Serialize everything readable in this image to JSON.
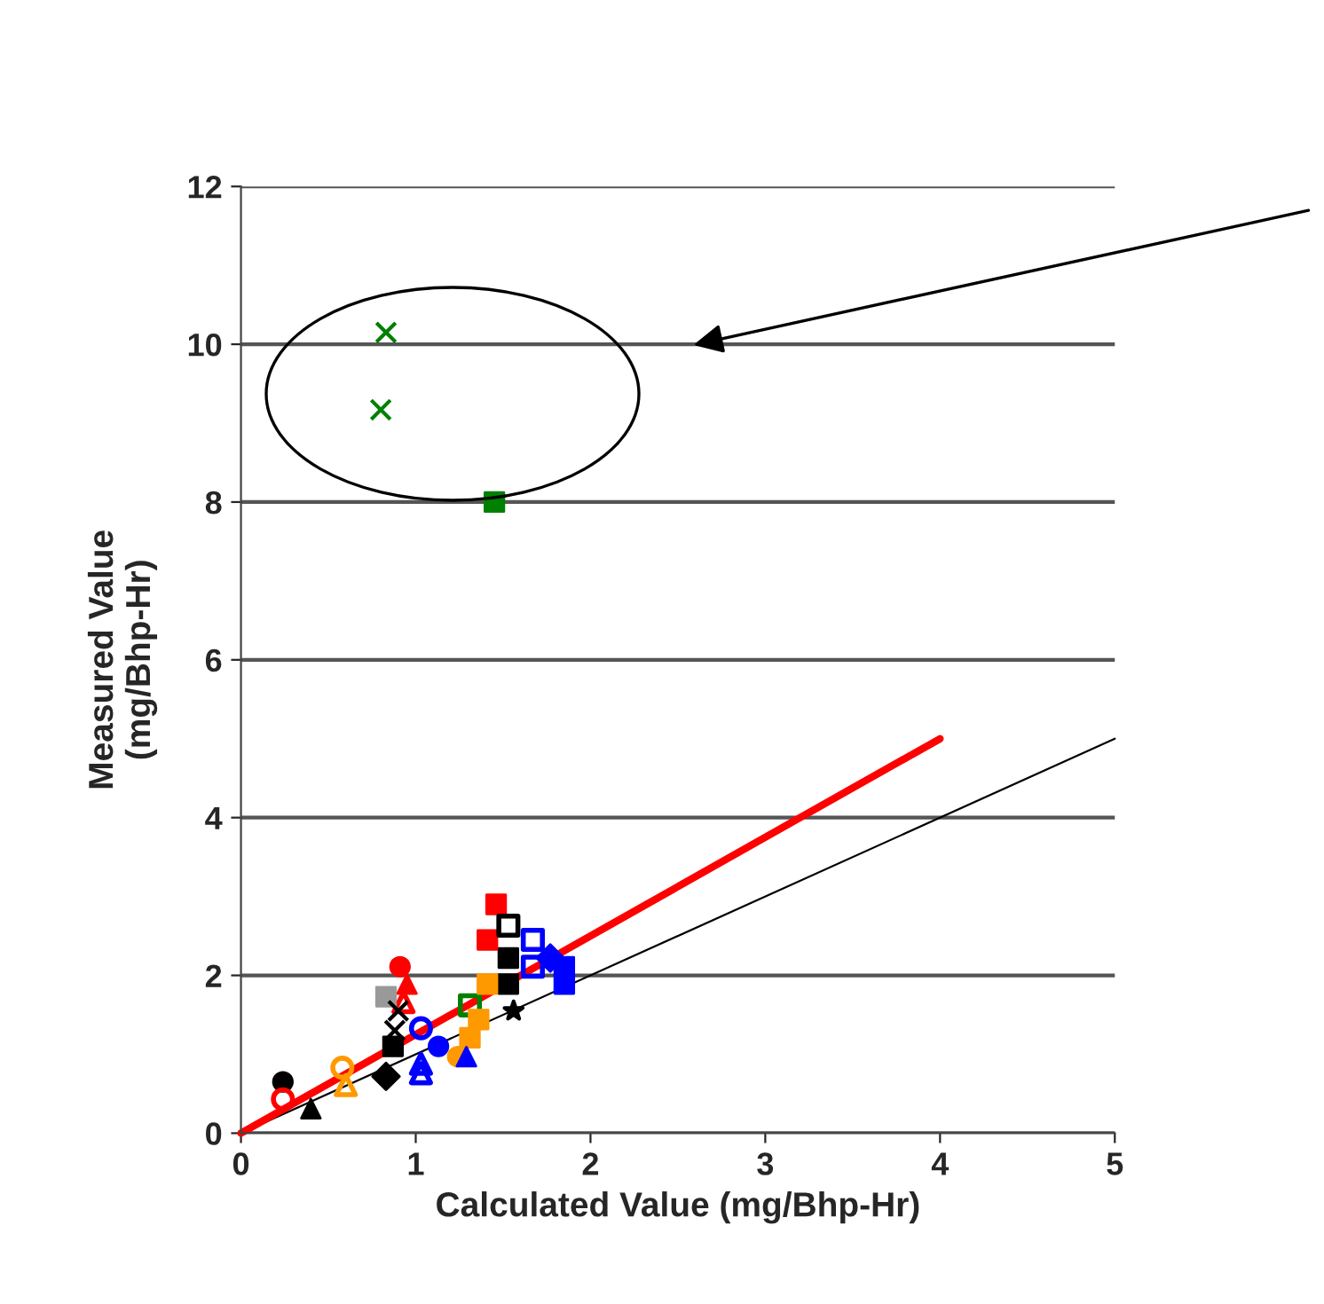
{
  "chart_data": {
    "type": "scatter",
    "xlabel": "Calculated Value (mg/Bhp-Hr)",
    "ylabel": "Measured Value\n(mg/Bhp-Hr)",
    "xlim": [
      0,
      5
    ],
    "ylim": [
      0,
      12
    ],
    "xticks": [
      0,
      1,
      2,
      3,
      4,
      5
    ],
    "yticks": [
      0,
      2,
      4,
      6,
      8,
      10,
      12
    ],
    "grid": "y",
    "legend": false,
    "series": [
      {
        "type": "line",
        "color": "#000000",
        "x": [
          0,
          5
        ],
        "values": [
          0,
          5
        ],
        "marker": "none"
      },
      {
        "type": "line",
        "color": "#ff0000",
        "x": [
          0,
          4
        ],
        "values": [
          0,
          5
        ],
        "marker": "none"
      },
      {
        "color": "#008000",
        "marker": "cross",
        "x": [
          0.83,
          0.8
        ],
        "values": [
          10.15,
          9.17
        ]
      },
      {
        "color": "#008000",
        "marker": "square",
        "x": [
          1.45
        ],
        "values": [
          8.0
        ]
      },
      {
        "color": "#008000",
        "marker": "square open",
        "x": [
          1.31
        ],
        "values": [
          1.62
        ]
      },
      {
        "color": "#000000",
        "marker": "circle",
        "x": [
          0.24
        ],
        "values": [
          0.65
        ]
      },
      {
        "color": "#ff0000",
        "marker": "circle open",
        "x": [
          0.24
        ],
        "values": [
          0.43
        ]
      },
      {
        "color": "#000000",
        "marker": "triangle",
        "x": [
          0.4
        ],
        "values": [
          0.31
        ]
      },
      {
        "color": "#ff9900",
        "marker": "circle open",
        "x": [
          0.58
        ],
        "values": [
          0.83
        ]
      },
      {
        "color": "#ff9900",
        "marker": "triangle open",
        "x": [
          0.6
        ],
        "values": [
          0.61
        ]
      },
      {
        "color": "#ff0000",
        "marker": "circle",
        "x": [
          0.91
        ],
        "values": [
          2.11
        ]
      },
      {
        "color": "#ff0000",
        "marker": "triangle",
        "x": [
          0.95
        ],
        "values": [
          1.89
        ]
      },
      {
        "color": "#ff0000",
        "marker": "triangle open",
        "x": [
          0.93
        ],
        "values": [
          1.66
        ]
      },
      {
        "color": "#999999",
        "marker": "square",
        "x": [
          0.83
        ],
        "values": [
          1.73
        ]
      },
      {
        "color": "#000000",
        "marker": "cross",
        "x": [
          0.9,
          0.88
        ],
        "values": [
          1.55,
          1.3
        ]
      },
      {
        "color": "#000000",
        "marker": "square",
        "x": [
          0.87,
          1.53,
          1.53
        ],
        "values": [
          1.1,
          2.22,
          1.89
        ]
      },
      {
        "color": "#000000",
        "marker": "diamond",
        "x": [
          0.83
        ],
        "values": [
          0.72
        ]
      },
      {
        "color": "#0000ff",
        "marker": "circle open",
        "x": [
          1.03
        ],
        "values": [
          1.33
        ]
      },
      {
        "color": "#0000ff",
        "marker": "circle",
        "x": [
          1.13
        ],
        "values": [
          1.1
        ]
      },
      {
        "color": "#0000ff",
        "marker": "triangle open",
        "x": [
          1.03,
          1.03
        ],
        "values": [
          0.88,
          0.76
        ]
      },
      {
        "color": "#ff9900",
        "marker": "square",
        "x": [
          1.36,
          1.31,
          1.41
        ],
        "values": [
          1.44,
          1.21,
          1.89
        ]
      },
      {
        "color": "#ff9900",
        "marker": "circle",
        "x": [
          1.24
        ],
        "values": [
          0.97
        ]
      },
      {
        "color": "#0000ff",
        "marker": "triangle",
        "x": [
          1.29
        ],
        "values": [
          0.97
        ]
      },
      {
        "color": "#ff0000",
        "marker": "square",
        "x": [
          1.46,
          1.41
        ],
        "values": [
          2.9,
          2.45
        ]
      },
      {
        "color": "#000000",
        "marker": "square open",
        "x": [
          1.53
        ],
        "values": [
          2.63
        ]
      },
      {
        "color": "#000000",
        "marker": "star",
        "x": [
          1.56
        ],
        "values": [
          1.55
        ]
      },
      {
        "color": "#0000ff",
        "marker": "square open",
        "x": [
          1.67,
          1.67
        ],
        "values": [
          2.45,
          2.11
        ]
      },
      {
        "color": "#0000ff",
        "marker": "diamond",
        "x": [
          1.77
        ],
        "values": [
          2.22
        ]
      },
      {
        "color": "#0000ff",
        "marker": "square",
        "x": [
          1.85,
          1.85
        ],
        "values": [
          2.11,
          1.89
        ]
      }
    ]
  }
}
